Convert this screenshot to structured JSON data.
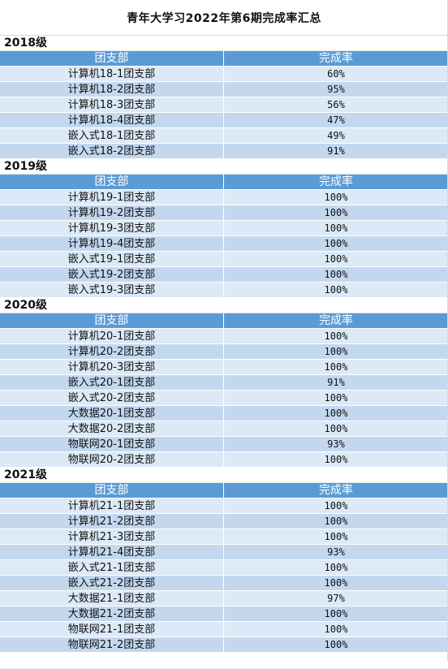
{
  "title": "青年大学习2022年第6期完成率汇总",
  "columns": {
    "name": "团支部",
    "rate": "完成率"
  },
  "colors": {
    "header": "#5b9bd5",
    "row_light": "#dce9f6",
    "row_mid": "#c3d8ef"
  },
  "sections": [
    {
      "grade": "2018级",
      "rows": [
        {
          "name": "计算机18-1团支部",
          "rate": "60%"
        },
        {
          "name": "计算机18-2团支部",
          "rate": "95%"
        },
        {
          "name": "计算机18-3团支部",
          "rate": "56%"
        },
        {
          "name": "计算机18-4团支部",
          "rate": "47%"
        },
        {
          "name": "嵌入式18-1团支部",
          "rate": "49%"
        },
        {
          "name": "嵌入式18-2团支部",
          "rate": "91%"
        }
      ]
    },
    {
      "grade": "2019级",
      "rows": [
        {
          "name": "计算机19-1团支部",
          "rate": "100%"
        },
        {
          "name": "计算机19-2团支部",
          "rate": "100%"
        },
        {
          "name": "计算机19-3团支部",
          "rate": "100%"
        },
        {
          "name": "计算机19-4团支部",
          "rate": "100%"
        },
        {
          "name": "嵌入式19-1团支部",
          "rate": "100%"
        },
        {
          "name": "嵌入式19-2团支部",
          "rate": "100%"
        },
        {
          "name": "嵌入式19-3团支部",
          "rate": "100%"
        }
      ]
    },
    {
      "grade": "2020级",
      "rows": [
        {
          "name": "计算机20-1团支部",
          "rate": "100%"
        },
        {
          "name": "计算机20-2团支部",
          "rate": "100%"
        },
        {
          "name": "计算机20-3团支部",
          "rate": "100%"
        },
        {
          "name": "嵌入式20-1团支部",
          "rate": "91%"
        },
        {
          "name": "嵌入式20-2团支部",
          "rate": "100%"
        },
        {
          "name": "大数据20-1团支部",
          "rate": "100%"
        },
        {
          "name": "大数据20-2团支部",
          "rate": "100%"
        },
        {
          "name": "物联网20-1团支部",
          "rate": "93%"
        },
        {
          "name": "物联网20-2团支部",
          "rate": "100%"
        }
      ]
    },
    {
      "grade": "2021级",
      "rows": [
        {
          "name": "计算机21-1团支部",
          "rate": "100%"
        },
        {
          "name": "计算机21-2团支部",
          "rate": "100%"
        },
        {
          "name": "计算机21-3团支部",
          "rate": "100%"
        },
        {
          "name": "计算机21-4团支部",
          "rate": "93%"
        },
        {
          "name": "嵌入式21-1团支部",
          "rate": "100%"
        },
        {
          "name": "嵌入式21-2团支部",
          "rate": "100%"
        },
        {
          "name": "大数据21-1团支部",
          "rate": "97%"
        },
        {
          "name": "大数据21-2团支部",
          "rate": "100%"
        },
        {
          "name": "物联网21-1团支部",
          "rate": "100%"
        },
        {
          "name": "物联网21-2团支部",
          "rate": "100%"
        }
      ]
    }
  ]
}
